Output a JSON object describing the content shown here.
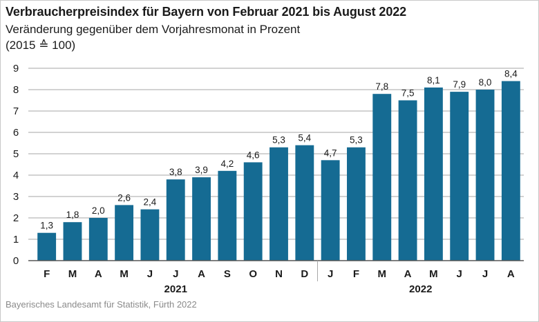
{
  "title": "Verbraucherpreisindex für Bayern von Februar 2021 bis August 2022",
  "subtitle": "Veränderung gegenüber dem Vorjahresmonat in Prozent",
  "note": "(2015 ≙ 100)",
  "source": "Bayerisches Landesamt für Statistik, Fürth 2022",
  "colors": {
    "bar": "#156b93",
    "grid": "#a6a6a6",
    "axis": "#555555"
  },
  "chart_data": {
    "type": "bar",
    "categories": [
      "F",
      "M",
      "A",
      "M",
      "J",
      "J",
      "A",
      "S",
      "O",
      "N",
      "D",
      "J",
      "F",
      "M",
      "A",
      "M",
      "J",
      "J",
      "A"
    ],
    "values": [
      1.3,
      1.8,
      2.0,
      2.6,
      2.4,
      3.8,
      3.9,
      4.2,
      4.6,
      5.3,
      5.4,
      4.7,
      5.3,
      7.8,
      7.5,
      8.1,
      7.9,
      8.0,
      8.4
    ],
    "data_labels": [
      "1,3",
      "1,8",
      "2,0",
      "2,6",
      "2,4",
      "3,8",
      "3,9",
      "4,2",
      "4,6",
      "5,3",
      "5,4",
      "4,7",
      "5,3",
      "7,8",
      "7,5",
      "8,1",
      "7,9",
      "8,0",
      "8,4"
    ],
    "groups": [
      {
        "label": "2021",
        "count": 11
      },
      {
        "label": "2022",
        "count": 8
      }
    ],
    "ylim": [
      0,
      9
    ],
    "yticks": [
      0,
      1,
      2,
      3,
      4,
      5,
      6,
      7,
      8,
      9
    ],
    "xlabel": "",
    "ylabel": "",
    "grid": true,
    "legend": "none"
  }
}
